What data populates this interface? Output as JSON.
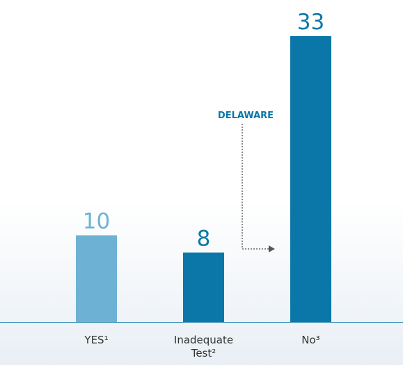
{
  "chart_data": {
    "type": "bar",
    "categories": [
      "YES¹",
      "Inadequate Test²",
      "No³"
    ],
    "values": [
      10,
      8,
      33
    ],
    "colors": [
      "#6db2d4",
      "#0a77a8",
      "#0a77a8"
    ],
    "annotation": "DELAWARE"
  }
}
